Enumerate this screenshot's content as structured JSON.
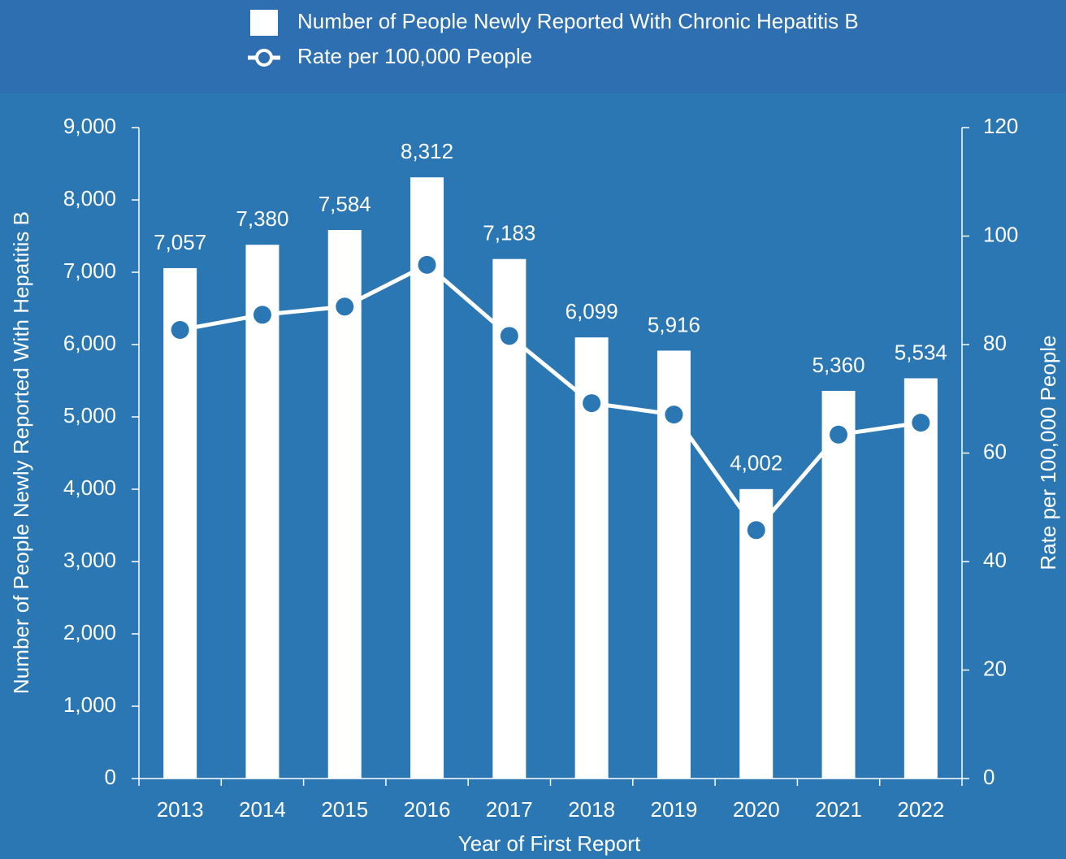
{
  "chart_data": {
    "type": "bar_line",
    "x_label": "Year of First Report",
    "y_label": "Number of People Newly Reported With Hepatitis B",
    "y2_label": "Rate per 100,000 People",
    "categories": [
      "2013",
      "2014",
      "2015",
      "2016",
      "2017",
      "2018",
      "2019",
      "2020",
      "2021",
      "2022"
    ],
    "series": [
      {
        "name": "Number of People Newly Reported With Chronic Hepatitis B",
        "type": "bar",
        "color": "#ffffff",
        "values": [
          7057,
          7380,
          7584,
          8312,
          7183,
          6099,
          5916,
          4002,
          5360,
          5534
        ],
        "value_labels": [
          "7,057",
          "7,380",
          "7,584",
          "8,312",
          "7,183",
          "6,099",
          "5,916",
          "4,002",
          "5,360",
          "5,534"
        ]
      },
      {
        "name": "Rate per 100,000 People",
        "type": "line",
        "axis": "y2",
        "color": "#ffffff",
        "values": [
          82.7,
          85.5,
          87.0,
          94.7,
          81.6,
          69.2,
          67.1,
          45.8,
          63.4,
          65.6
        ]
      }
    ],
    "ylim": [
      0,
      9000
    ],
    "yticks": [
      0,
      {
        "value": 1000,
        "label": "1,000"
      },
      {
        "value": 2000,
        "label": "2,000"
      },
      {
        "value": 3000,
        "label": "3,000"
      },
      {
        "value": 4000,
        "label": "4,000"
      },
      {
        "value": 5000,
        "label": "5,000"
      },
      {
        "value": 6000,
        "label": "6,000"
      },
      {
        "value": 7000,
        "label": "7,000"
      },
      {
        "value": 8000,
        "label": "8,000"
      },
      {
        "value": 9000,
        "label": "9,000"
      }
    ],
    "y2lim": [
      0,
      120
    ],
    "y2ticks": [
      0,
      20,
      40,
      60,
      80,
      100,
      120
    ],
    "background": "#2a77b4"
  }
}
